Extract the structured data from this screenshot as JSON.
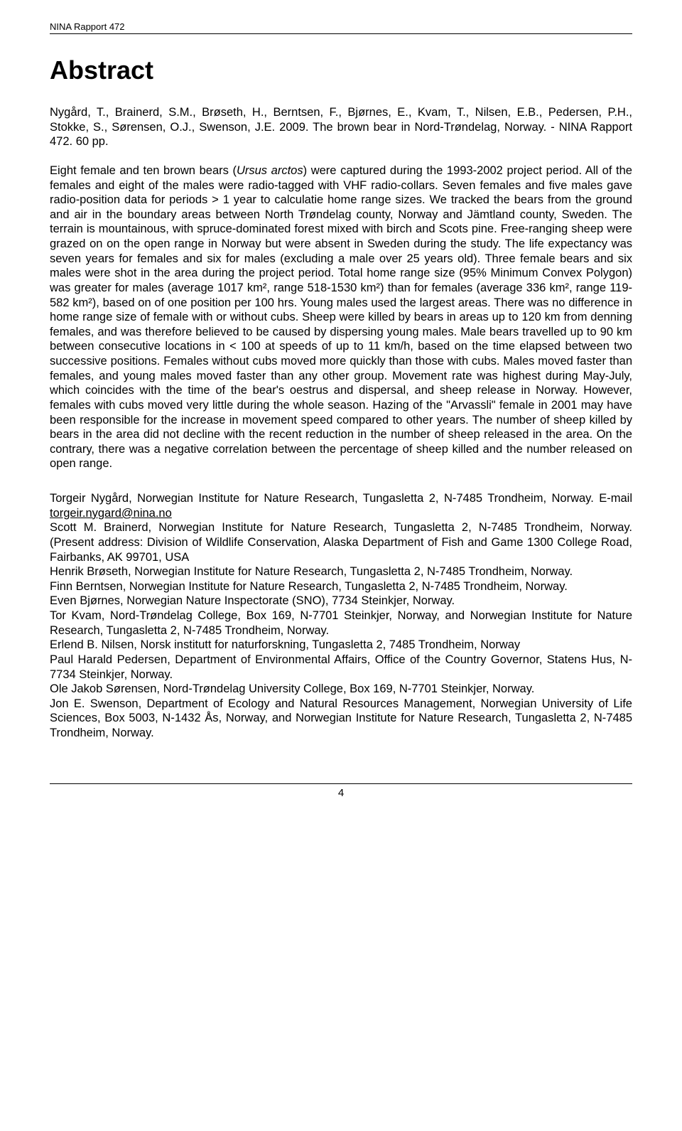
{
  "header": {
    "label": "NINA Rapport 472"
  },
  "title": "Abstract",
  "citation": "Nygård, T., Brainerd, S.M., Brøseth, H., Berntsen, F., Bjørnes, E., Kvam, T., Nilsen, E.B., Pedersen, P.H., Stokke, S., Sørensen, O.J., Swenson, J.E. 2009. The brown bear in Nord-Trøndelag, Norway. - NINA Rapport 472. 60 pp.",
  "body_pre_italic": "Eight female and ten brown bears (",
  "body_italic": "Ursus arctos",
  "body_post_italic": ") were captured during the 1993-2002 project period. All of the females and eight of the males were radio-tagged with VHF radio-collars. Seven females and five males gave radio-position data for periods > 1 year to calculatie home range sizes. We tracked the bears from the ground and air in the boundary areas between North Trøndelag county, Norway and Jämtland county, Sweden. The terrain is mountainous, with spruce-dominated forest mixed with birch and Scots pine. Free-ranging sheep were grazed on on the open range in Norway but were absent in Sweden during the study. The life expectancy was seven years for females and six for males (excluding a male over 25 years old). Three female bears and six males were shot in the area during the project period. Total home range size (95% Minimum Convex Polygon) was greater for males (average 1017 km², range 518-1530 km²) than for females (average 336 km², range 119-582 km²), based on of one position per 100 hrs. Young males used the largest areas. There was no difference in home range size of female with or without cubs. Sheep were killed by bears in areas up to 120 km from denning females, and was therefore believed to be caused by dispersing young males. Male bears travelled up to 90 km between consecutive locations in < 100 at speeds of up to 11 km/h, based on the time elapsed between two successive positions. Females without cubs moved more quickly than those with cubs. Males moved faster than females, and young males moved faster than any other group. Movement rate was highest during May-July, which coincides with the time of the bear's oestrus and dispersal, and sheep release in Norway. However, females with cubs moved very little during the whole season. Hazing of the \"Arvassli\" female in 2001 may have been responsible for the increase in movement speed compared to other years. The number of sheep killed by bears in the area did not decline with the recent reduction in the number of sheep released in the area. On the contrary, there was a negative correlation between the percentage of sheep killed and the number released on open range.",
  "authors": {
    "a1_pre": "Torgeir Nygård, Norwegian Institute for Nature Research, Tungasletta 2, N-7485 Trondheim, Norway. E-mail ",
    "a1_email": "torgeir.nygard@nina.no",
    "a2": "Scott M. Brainerd, Norwegian Institute for Nature Research, Tungasletta 2, N-7485 Trondheim, Norway. (Present address: Division of Wildlife Conservation, Alaska Department of Fish and Game 1300 College Road, Fairbanks, AK 99701, USA",
    "a3": "Henrik Brøseth, Norwegian Institute for Nature Research, Tungasletta 2, N-7485 Trondheim, Norway.",
    "a4": "Finn Berntsen, Norwegian Institute for Nature Research, Tungasletta 2, N-7485 Trondheim, Norway.",
    "a5": "Even Bjørnes, Norwegian Nature Inspectorate (SNO), 7734 Steinkjer, Norway.",
    "a6": "Tor Kvam, Nord-Trøndelag College, Box 169, N-7701 Steinkjer, Norway, and Norwegian Institute for Nature Research, Tungasletta 2, N-7485 Trondheim, Norway.",
    "a7": "Erlend B. Nilsen, Norsk institutt for naturforskning, Tungasletta 2, 7485 Trondheim, Norway",
    "a8": "Paul Harald Pedersen, Department of Environmental Affairs, Office of the Country Governor, Statens Hus, N-7734 Steinkjer, Norway.",
    "a9": "Ole Jakob Sørensen, Nord-Trøndelag University College, Box 169, N-7701 Steinkjer, Norway.",
    "a10": "Jon E. Swenson, Department of Ecology and Natural Resources Management, Norwegian University of Life Sciences, Box 5003, N-1432 Ås, Norway, and Norwegian Institute for Nature Research, Tungasletta 2, N-7485 Trondheim, Norway."
  },
  "page_number": "4"
}
